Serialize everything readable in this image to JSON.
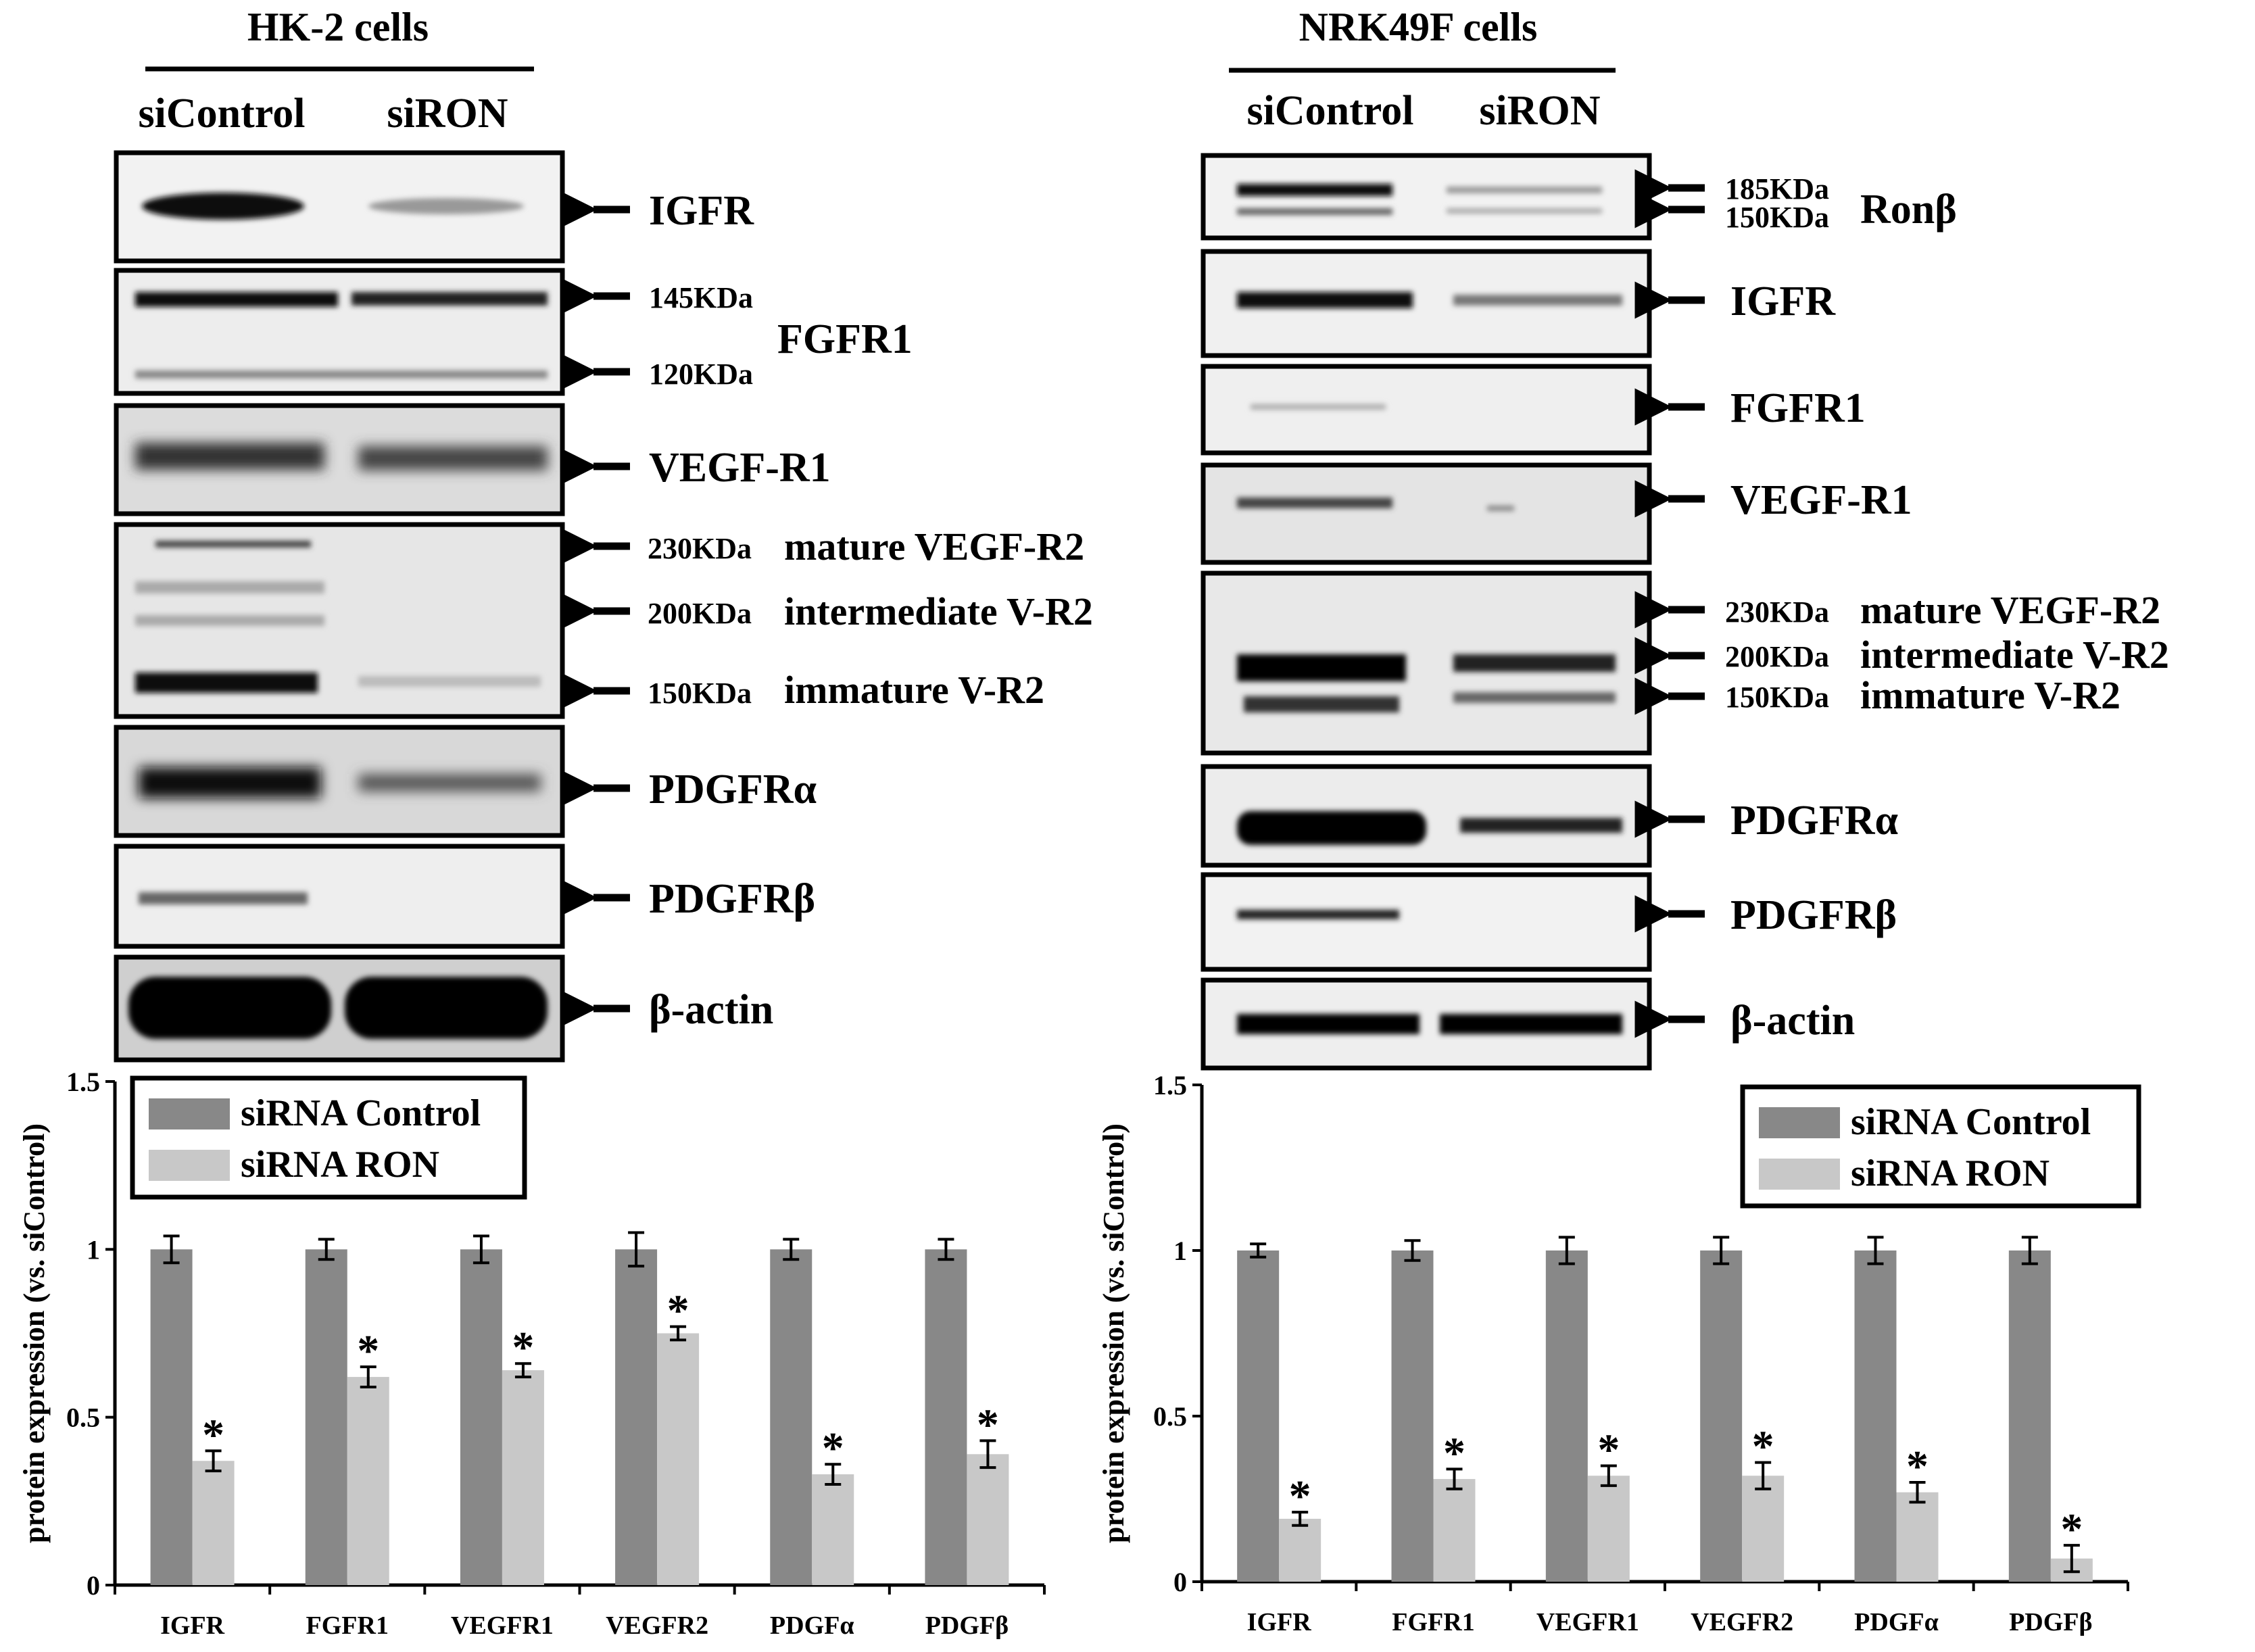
{
  "left_panel": {
    "title": "HK-2 cells",
    "lanes": [
      "siControl",
      "siRON"
    ],
    "blots": [
      {
        "labels": [
          {
            "kda": "",
            "name": "IGFR"
          }
        ]
      },
      {
        "labels": [
          {
            "kda": "145KDa",
            "name": ""
          },
          {
            "kda": "120KDa",
            "name": ""
          }
        ],
        "group_name": "FGFR1"
      },
      {
        "labels": [
          {
            "kda": "",
            "name": "VEGF-R1"
          }
        ]
      },
      {
        "labels": [
          {
            "kda": "230KDa",
            "name": "mature VEGF-R2"
          },
          {
            "kda": "200KDa",
            "name": "intermediate V-R2"
          },
          {
            "kda": "150KDa",
            "name": "immature V-R2"
          }
        ]
      },
      {
        "labels": [
          {
            "kda": "",
            "name": "PDGFRα"
          }
        ]
      },
      {
        "labels": [
          {
            "kda": "",
            "name": "PDGFRβ"
          }
        ]
      },
      {
        "labels": [
          {
            "kda": "",
            "name": "β-actin"
          }
        ]
      }
    ]
  },
  "right_panel": {
    "title": "NRK49F cells",
    "lanes": [
      "siControl",
      "siRON"
    ],
    "blots": [
      {
        "labels": [
          {
            "kda": "185KDa",
            "name": ""
          },
          {
            "kda": "150KDa",
            "name": ""
          }
        ],
        "group_name": "Ronβ"
      },
      {
        "labels": [
          {
            "kda": "",
            "name": "IGFR"
          }
        ]
      },
      {
        "labels": [
          {
            "kda": "",
            "name": "FGFR1"
          }
        ]
      },
      {
        "labels": [
          {
            "kda": "",
            "name": "VEGF-R1"
          }
        ]
      },
      {
        "labels": [
          {
            "kda": "230KDa",
            "name": "mature VEGF-R2"
          },
          {
            "kda": "200KDa",
            "name": "intermediate V-R2"
          },
          {
            "kda": "150KDa",
            "name": "immature V-R2"
          }
        ]
      },
      {
        "labels": [
          {
            "kda": "",
            "name": "PDGFRα"
          }
        ]
      },
      {
        "labels": [
          {
            "kda": "",
            "name": "PDGFRβ"
          }
        ]
      },
      {
        "labels": [
          {
            "kda": "",
            "name": "β-actin"
          }
        ]
      }
    ]
  },
  "colors": {
    "control": "#888888",
    "ron": "#c8c8c8",
    "band": "#111111"
  },
  "significance_marker": "*",
  "chart_data": [
    {
      "type": "bar",
      "panel": "HK-2 cells",
      "categories": [
        "IGFR",
        "FGFR1",
        "VEGFR1",
        "VEGFR2",
        "PDGFα",
        "PDGFβ"
      ],
      "series": [
        {
          "name": "siRNA Control",
          "values": [
            1.0,
            1.0,
            1.0,
            1.0,
            1.0,
            1.0
          ],
          "errors": [
            0.04,
            0.03,
            0.04,
            0.05,
            0.03,
            0.03
          ]
        },
        {
          "name": "siRNA RON",
          "values": [
            0.37,
            0.62,
            0.64,
            0.75,
            0.33,
            0.39
          ],
          "errors": [
            0.03,
            0.03,
            0.02,
            0.02,
            0.03,
            0.04
          ],
          "significant": [
            true,
            true,
            true,
            true,
            true,
            true
          ]
        }
      ],
      "ylabel": "protein expression (vs. siControl)",
      "xlabel": "",
      "ylim": [
        0,
        1.5
      ],
      "yticks": [
        "0",
        "0.5",
        "1",
        "1.5"
      ],
      "legend": "top-left",
      "grid": false
    },
    {
      "type": "bar",
      "panel": "NRK49F cells",
      "categories": [
        "IGFR",
        "FGFR1",
        "VEGFR1",
        "VEGFR2",
        "PDGFα",
        "PDGFβ"
      ],
      "series": [
        {
          "name": "siRNA Control",
          "values": [
            1.0,
            1.0,
            1.0,
            1.0,
            1.0,
            1.0
          ],
          "errors": [
            0.02,
            0.03,
            0.04,
            0.04,
            0.04,
            0.04
          ]
        },
        {
          "name": "siRNA RON",
          "values": [
            0.19,
            0.31,
            0.32,
            0.32,
            0.27,
            0.07
          ],
          "errors": [
            0.02,
            0.03,
            0.03,
            0.04,
            0.03,
            0.04
          ],
          "significant": [
            true,
            true,
            true,
            true,
            true,
            true
          ]
        }
      ],
      "ylabel": "protein expression (vs. siControl)",
      "xlabel": "",
      "ylim": [
        0,
        1.5
      ],
      "yticks": [
        "0",
        "0.5",
        "1",
        "1.5"
      ],
      "legend": "top-right",
      "grid": false
    }
  ]
}
